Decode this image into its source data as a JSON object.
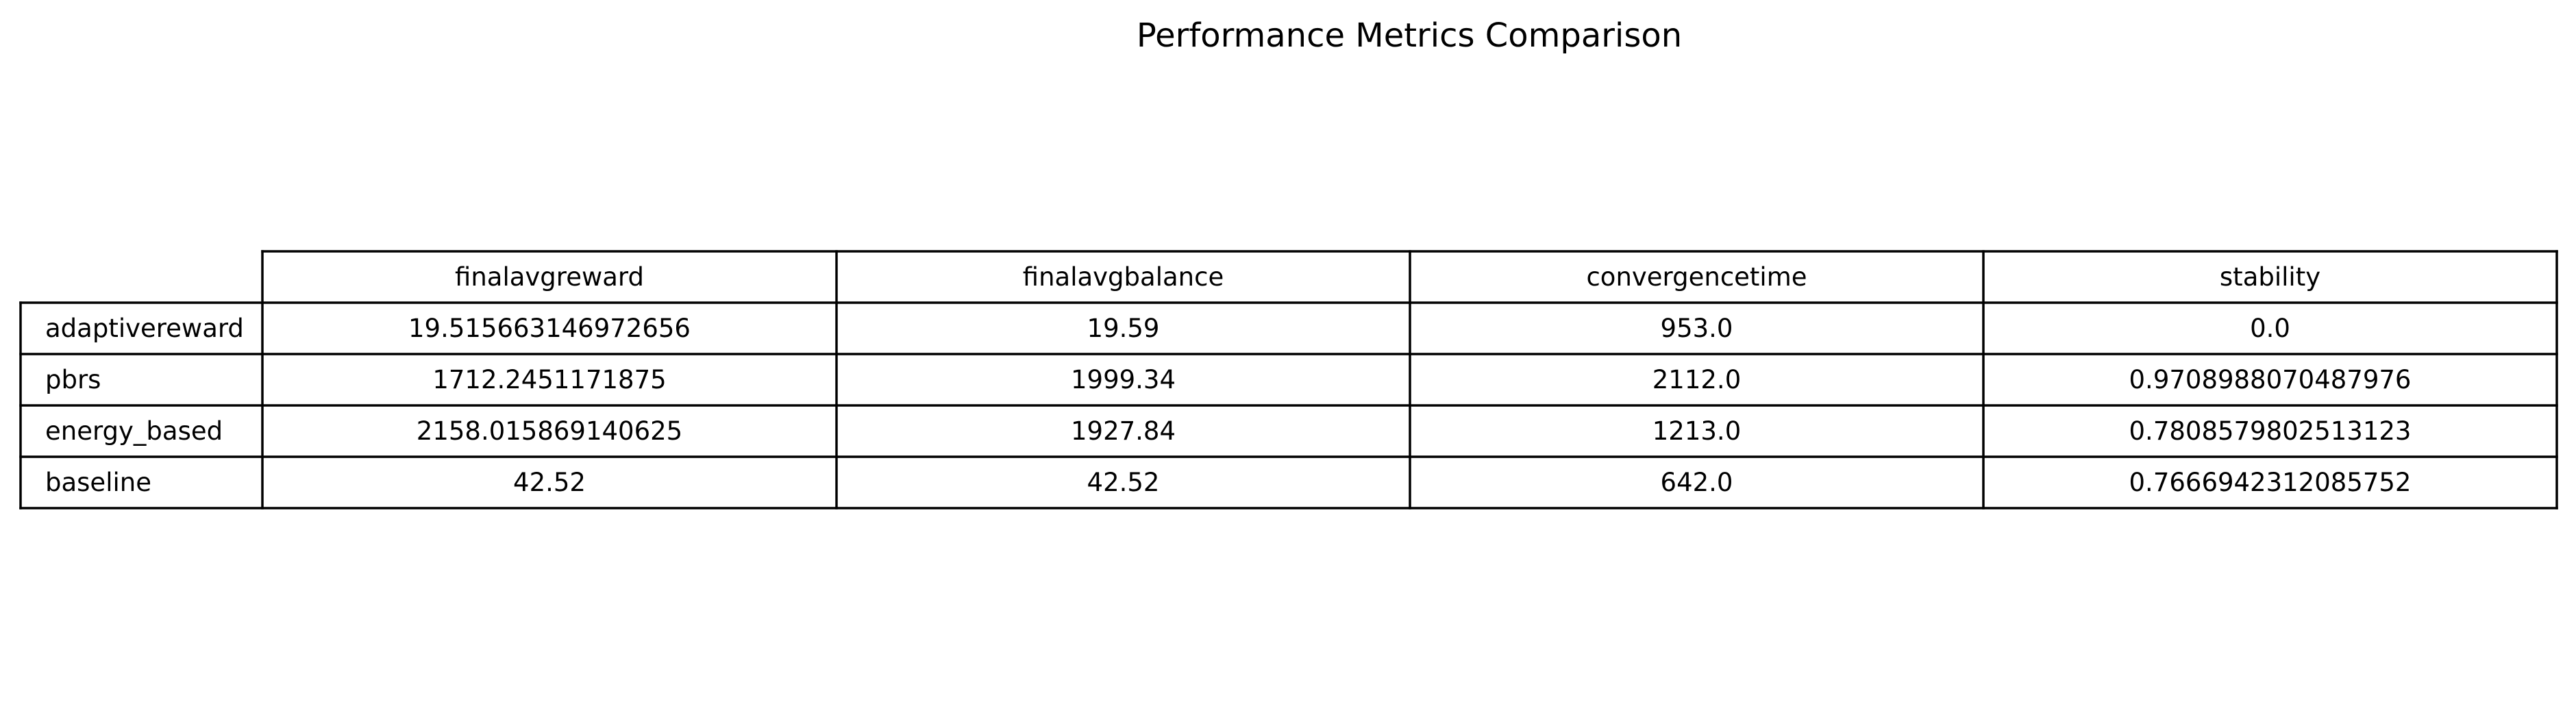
{
  "chart_data": {
    "type": "table",
    "title": "Performance Metrics Comparison",
    "columns": [
      "finalavgreward",
      "finalavgbalance",
      "convergencetime",
      "stability"
    ],
    "rows": [
      {
        "label": "adaptivereward",
        "values": [
          "19.515663146972656",
          "19.59",
          "953.0",
          "0.0"
        ]
      },
      {
        "label": "pbrs",
        "values": [
          "1712.2451171875",
          "1999.34",
          "2112.0",
          "0.9708988070487976"
        ]
      },
      {
        "label": "energy_based",
        "values": [
          "2158.015869140625",
          "1927.84",
          "1213.0",
          "0.7808579802513123"
        ]
      },
      {
        "label": "baseline",
        "values": [
          "42.52",
          "42.52",
          "642.0",
          "0.7666942312085752"
        ]
      }
    ]
  }
}
